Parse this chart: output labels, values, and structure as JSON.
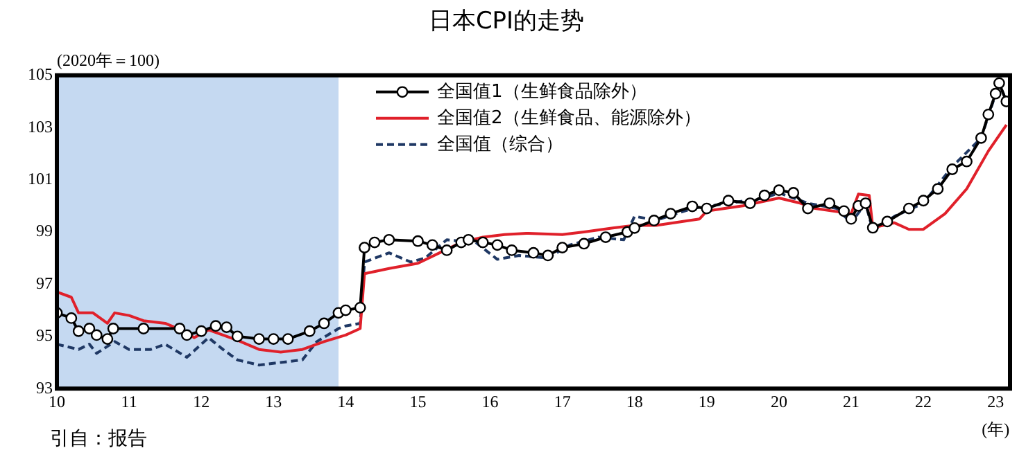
{
  "chart_data": {
    "type": "line",
    "title": "日本CPI的走势",
    "ylabel": "(2020年＝100)",
    "xlabel": "(年)",
    "annotations": [
      "引自：报告"
    ],
    "xlim": [
      10,
      23.2
    ],
    "xticks": [
      10,
      11,
      12,
      13,
      14,
      15,
      16,
      17,
      18,
      19,
      20,
      21,
      22,
      23
    ],
    "ylim": [
      93,
      105
    ],
    "yticks": [
      93,
      95,
      97,
      99,
      101,
      103,
      105
    ],
    "grid": false,
    "legend": "top left",
    "bands": [
      {
        "axis": "x",
        "from": 10,
        "to": 13.9,
        "color": "#c5d9f1"
      }
    ],
    "series": [
      {
        "name": "全国值1（生鲜食品除外）",
        "color": "#000000",
        "marker": "circle",
        "line_style": "solid",
        "x": [
          10,
          10.2,
          10.3,
          10.45,
          10.55,
          10.7,
          10.78,
          11.2,
          11.7,
          11.8,
          12,
          12.2,
          12.35,
          12.5,
          12.8,
          13,
          13.2,
          13.5,
          13.7,
          13.9,
          14,
          14.2,
          14.26,
          14.4,
          14.6,
          15,
          15.2,
          15.4,
          15.6,
          15.7,
          15.9,
          16.1,
          16.3,
          16.6,
          16.8,
          17,
          17.3,
          17.6,
          17.9,
          18,
          18.27,
          18.5,
          18.8,
          19,
          19.3,
          19.6,
          19.8,
          20,
          20.2,
          20.4,
          20.7,
          20.9,
          21,
          21.1,
          21.2,
          21.3,
          21.5,
          21.8,
          22,
          22.2,
          22.4,
          22.6,
          22.8,
          22.9,
          23,
          23.05,
          23.15
        ],
        "values": [
          95.9,
          95.7,
          95.2,
          95.3,
          95.05,
          94.9,
          95.3,
          95.3,
          95.3,
          95.05,
          95.2,
          95.4,
          95.35,
          95,
          94.9,
          94.9,
          94.9,
          95.2,
          95.5,
          95.9,
          96,
          96.1,
          98.4,
          98.6,
          98.7,
          98.65,
          98.5,
          98.3,
          98.6,
          98.7,
          98.6,
          98.5,
          98.3,
          98.2,
          98.1,
          98.4,
          98.55,
          98.8,
          99,
          99.15,
          99.44,
          99.7,
          99.98,
          99.9,
          100.2,
          100.1,
          100.4,
          100.6,
          100.5,
          99.9,
          100.1,
          99.8,
          99.5,
          100,
          100.1,
          99.16,
          99.4,
          99.9,
          100.2,
          100.65,
          101.4,
          101.7,
          102.6,
          103.5,
          104.3,
          104.7,
          104
        ]
      },
      {
        "name": "全国值2（生鲜食品、能源除外）",
        "color": "#e0202a",
        "marker": "none",
        "line_style": "solid",
        "x": [
          10,
          10.2,
          10.3,
          10.5,
          10.7,
          10.8,
          11,
          11.2,
          11.5,
          11.8,
          11.9,
          12.1,
          12.3,
          12.5,
          12.8,
          13.1,
          13.4,
          13.7,
          14,
          14.2,
          14.26,
          14.6,
          15,
          15.3,
          15.6,
          15.9,
          16.2,
          16.5,
          17,
          17.3,
          17.7,
          18,
          18.3,
          18.9,
          19,
          19.5,
          20,
          20.3,
          20.5,
          21,
          21.1,
          21.25,
          21.3,
          21.6,
          21.8,
          22,
          22.3,
          22.6,
          22.9,
          23.15
        ],
        "values": [
          96.7,
          96.5,
          95.9,
          95.9,
          95.5,
          95.9,
          95.8,
          95.6,
          95.5,
          95.15,
          94.95,
          95.25,
          95.05,
          94.85,
          94.5,
          94.4,
          94.5,
          94.8,
          95.05,
          95.3,
          97.4,
          97.6,
          97.8,
          98.2,
          98.6,
          98.8,
          98.9,
          98.95,
          98.9,
          99,
          99.15,
          99.25,
          99.25,
          99.5,
          99.8,
          100,
          100.3,
          100.1,
          99.9,
          99.7,
          100.45,
          100.4,
          99.16,
          99.35,
          99.1,
          99.1,
          99.7,
          100.65,
          102.1,
          103.1
        ]
      },
      {
        "name": "全国值（综合）",
        "color": "#1f3864",
        "marker": "none",
        "line_style": "dashed",
        "x": [
          10,
          10.3,
          10.45,
          10.55,
          10.8,
          11,
          11.3,
          11.5,
          11.8,
          12.1,
          12.3,
          12.5,
          12.8,
          13.1,
          13.4,
          13.6,
          13.9,
          14,
          14.2,
          14.26,
          14.6,
          14.9,
          15.1,
          15.4,
          15.8,
          16.1,
          16.4,
          16.8,
          17.1,
          17.5,
          17.85,
          18,
          18.3,
          18.8,
          19.3,
          19.8,
          20,
          20.4,
          20.8,
          21,
          21.2,
          21.3,
          21.6,
          22,
          22.4,
          22.8,
          23.05,
          23.15
        ],
        "values": [
          94.7,
          94.5,
          94.7,
          94.35,
          94.8,
          94.5,
          94.5,
          94.7,
          94.2,
          94.95,
          94.5,
          94.1,
          93.9,
          94,
          94.1,
          94.8,
          95.3,
          95.4,
          95.5,
          97.85,
          98.2,
          97.85,
          98,
          98.7,
          98.6,
          97.95,
          98.1,
          98,
          98.5,
          98.8,
          98.7,
          99.6,
          99.45,
          99.9,
          100.1,
          100.3,
          100.5,
          100.1,
          99.9,
          99.35,
          100.1,
          99.05,
          99.6,
          100.1,
          101.5,
          102.6,
          104.7,
          104
        ]
      }
    ]
  }
}
